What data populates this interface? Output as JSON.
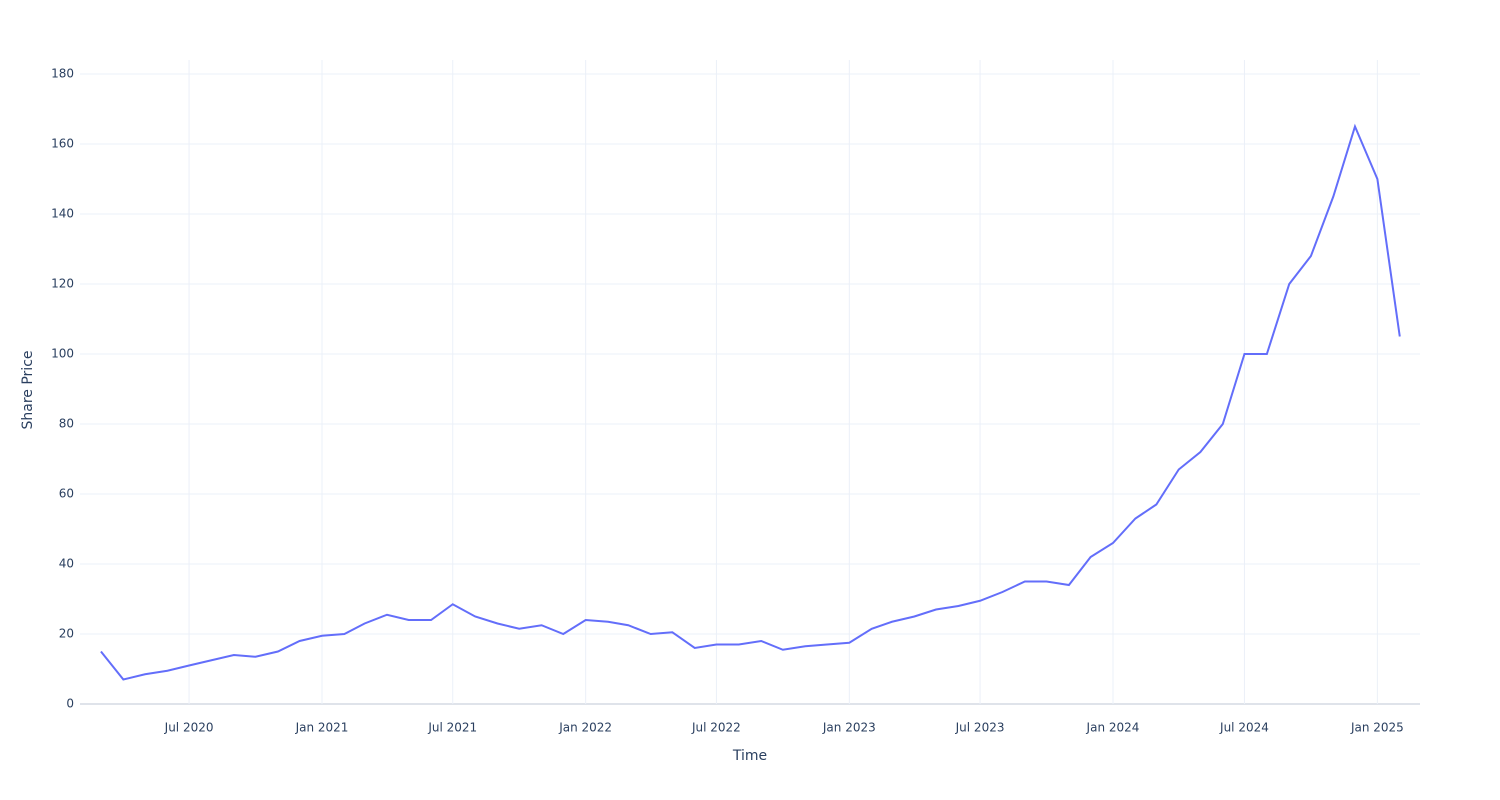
{
  "chart_data": {
    "type": "line",
    "x_label": "Time",
    "y_label": "Share Price",
    "x": [
      "2020-03",
      "2020-04",
      "2020-05",
      "2020-06",
      "2020-07",
      "2020-08",
      "2020-09",
      "2020-10",
      "2020-11",
      "2020-12",
      "2021-01",
      "2021-02",
      "2021-03",
      "2021-04",
      "2021-05",
      "2021-06",
      "2021-07",
      "2021-08",
      "2021-09",
      "2021-10",
      "2021-11",
      "2021-12",
      "2022-01",
      "2022-02",
      "2022-03",
      "2022-04",
      "2022-05",
      "2022-06",
      "2022-07",
      "2022-08",
      "2022-09",
      "2022-10",
      "2022-11",
      "2022-12",
      "2023-01",
      "2023-02",
      "2023-03",
      "2023-04",
      "2023-05",
      "2023-06",
      "2023-07",
      "2023-08",
      "2023-09",
      "2023-10",
      "2023-11",
      "2023-12",
      "2024-01",
      "2024-02",
      "2024-03",
      "2024-04",
      "2024-05",
      "2024-06",
      "2024-07",
      "2024-08",
      "2024-09",
      "2024-10",
      "2024-11",
      "2024-12",
      "2025-01",
      "2025-02"
    ],
    "series": [
      {
        "name": "Share Price",
        "color": "#636efa",
        "values": [
          15,
          7,
          8.5,
          9.5,
          11,
          12.5,
          14,
          13.5,
          15,
          18,
          19.5,
          20,
          23,
          25.5,
          24,
          24,
          28.5,
          25,
          23,
          21.5,
          22.5,
          20,
          24,
          23.5,
          22.5,
          20,
          20.5,
          16,
          17,
          17,
          18,
          15.5,
          16.5,
          17,
          17.5,
          21.5,
          23.5,
          25,
          27,
          28,
          29.5,
          32,
          35,
          35,
          34,
          42,
          46,
          53,
          57,
          67,
          72,
          80,
          100,
          100,
          120,
          128,
          145,
          165,
          150,
          105
        ]
      }
    ],
    "xlim": [
      "2020-02",
      "2025-03"
    ],
    "xticks": [
      {
        "value": "2020-07",
        "label": "Jul 2020"
      },
      {
        "value": "2021-01",
        "label": "Jan 2021"
      },
      {
        "value": "2021-07",
        "label": "Jul 2021"
      },
      {
        "value": "2022-01",
        "label": "Jan 2022"
      },
      {
        "value": "2022-07",
        "label": "Jul 2022"
      },
      {
        "value": "2023-01",
        "label": "Jan 2023"
      },
      {
        "value": "2023-07",
        "label": "Jul 2023"
      },
      {
        "value": "2024-01",
        "label": "Jan 2024"
      },
      {
        "value": "2024-07",
        "label": "Jul 2024"
      },
      {
        "value": "2025-01",
        "label": "Jan 2025"
      }
    ],
    "ylim": [
      0,
      184
    ],
    "yticks": [
      0,
      20,
      40,
      60,
      80,
      100,
      120,
      140,
      160,
      180
    ],
    "grid": true
  }
}
